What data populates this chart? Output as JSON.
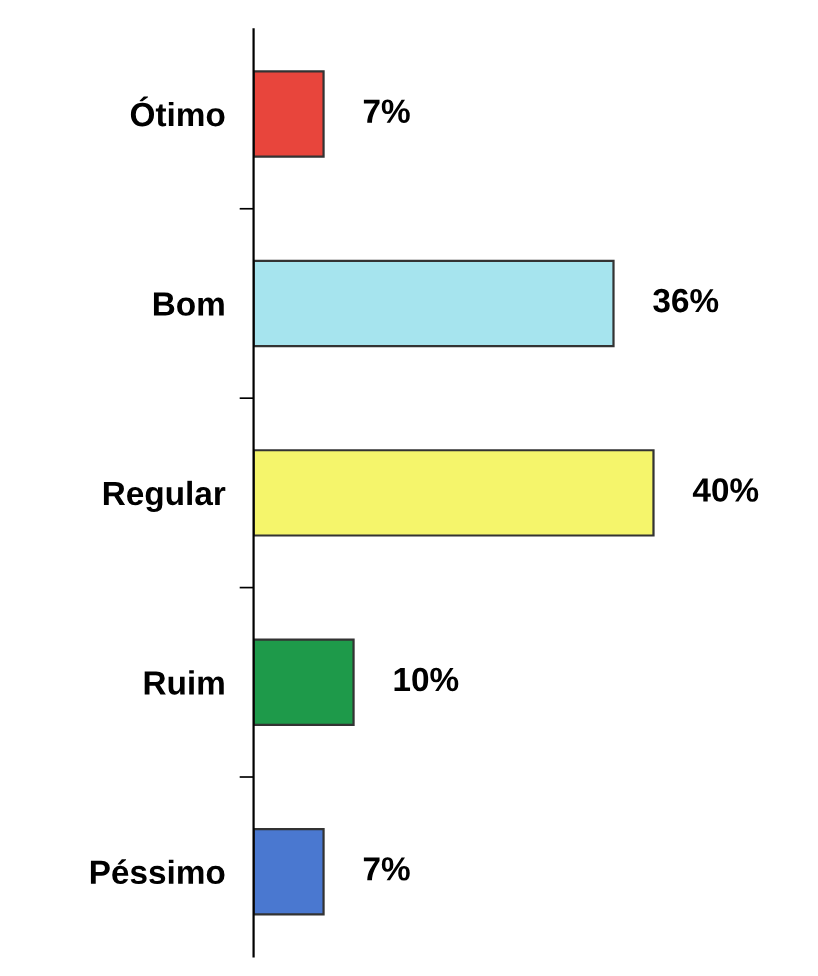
{
  "chart_data": {
    "type": "bar",
    "orientation": "horizontal",
    "categories": [
      "Ótimo",
      "Bom",
      "Regular",
      "Ruim",
      "Péssimo"
    ],
    "values": [
      7,
      36,
      40,
      10,
      7
    ],
    "value_labels": [
      "7%",
      "36%",
      "40%",
      "10%",
      "7%"
    ],
    "colors": [
      "#e8453c",
      "#a6e4ee",
      "#f5f56b",
      "#1e9a4a",
      "#4a78d0"
    ],
    "grid": false,
    "legend": false
  }
}
